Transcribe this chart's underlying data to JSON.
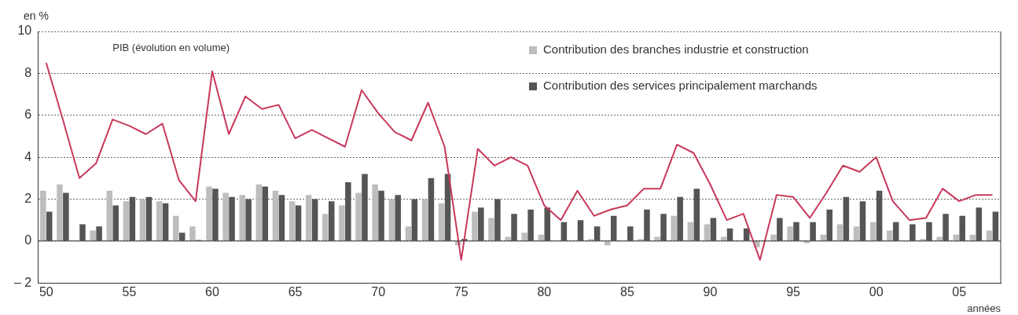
{
  "chart_data": {
    "type": "bar",
    "ylabel": "en %",
    "xlabel": "années",
    "annotations": [
      "PIB (évolution en volume)"
    ],
    "categories": [
      "50",
      null,
      null,
      null,
      null,
      "55",
      null,
      null,
      null,
      null,
      "60",
      null,
      null,
      null,
      null,
      "65",
      null,
      null,
      null,
      null,
      "70",
      null,
      null,
      null,
      null,
      "75",
      null,
      null,
      null,
      null,
      "80",
      null,
      null,
      null,
      null,
      "85",
      null,
      null,
      null,
      null,
      "90",
      null,
      null,
      null,
      null,
      "95",
      null,
      null,
      null,
      null,
      "00",
      null,
      null,
      null,
      null,
      "05",
      null,
      null
    ],
    "series": [
      {
        "name": "Contribution des branches industrie et construction",
        "color": "#bdbdbd",
        "values": [
          2.4,
          2.7,
          0.0,
          0.5,
          2.4,
          1.9,
          2.0,
          1.9,
          1.2,
          0.7,
          2.6,
          2.3,
          2.2,
          2.7,
          2.4,
          1.9,
          2.2,
          1.3,
          1.7,
          2.3,
          2.7,
          2.0,
          0.7,
          2.0,
          1.8,
          -0.2,
          1.4,
          1.1,
          0.2,
          0.4,
          0.3,
          null,
          null,
          0.1,
          -0.2,
          0.0,
          0.1,
          0.2,
          1.2,
          0.9,
          0.8,
          0.2,
          0.0,
          -0.3,
          0.3,
          0.7,
          -0.1,
          0.3,
          0.8,
          0.7,
          0.9,
          0.5,
          0.0,
          0.1,
          0.2,
          0.3,
          0.3,
          0.5
        ]
      },
      {
        "name": "Contribution des services principalement marchands",
        "color": "#555555",
        "values": [
          1.4,
          2.3,
          0.8,
          0.7,
          1.7,
          2.1,
          2.1,
          1.8,
          0.4,
          0.05,
          2.5,
          2.1,
          2.0,
          2.6,
          2.2,
          1.7,
          2.0,
          1.9,
          2.8,
          3.2,
          2.4,
          2.2,
          2.0,
          3.0,
          3.2,
          0.1,
          1.6,
          2.0,
          1.3,
          1.5,
          1.6,
          0.9,
          1.0,
          0.7,
          1.2,
          0.7,
          1.5,
          1.3,
          2.1,
          2.5,
          1.1,
          0.6,
          0.6,
          0.0,
          1.1,
          0.9,
          0.9,
          1.5,
          2.1,
          1.9,
          2.4,
          0.9,
          0.8,
          0.9,
          1.3,
          1.2,
          1.6,
          1.4
        ]
      },
      {
        "type": "line",
        "color": "#c8385a",
        "values": [
          8.5,
          5.8,
          3.0,
          3.7,
          5.8,
          5.5,
          5.1,
          5.6,
          2.9,
          1.9,
          8.1,
          5.1,
          6.9,
          6.3,
          6.5,
          4.9,
          5.3,
          4.9,
          4.5,
          7.2,
          6.1,
          5.2,
          4.8,
          6.6,
          4.5,
          -0.9,
          4.4,
          3.6,
          4.0,
          3.6,
          1.7,
          1.0,
          2.4,
          1.2,
          1.5,
          1.7,
          2.5,
          2.5,
          4.6,
          4.2,
          2.7,
          1.0,
          1.3,
          -0.9,
          2.2,
          2.1,
          1.1,
          2.3,
          3.6,
          3.3,
          4.0,
          1.9,
          1.0,
          1.1,
          2.5,
          1.9,
          2.2,
          2.2
        ]
      }
    ],
    "ylim": [
      -2,
      10
    ],
    "yticks": [
      {
        "value": -2,
        "label": "– 2"
      },
      0,
      2,
      4,
      6,
      8,
      10
    ],
    "grid": "y",
    "line_style": "solid",
    "marker": "none",
    "legend": "top right"
  }
}
